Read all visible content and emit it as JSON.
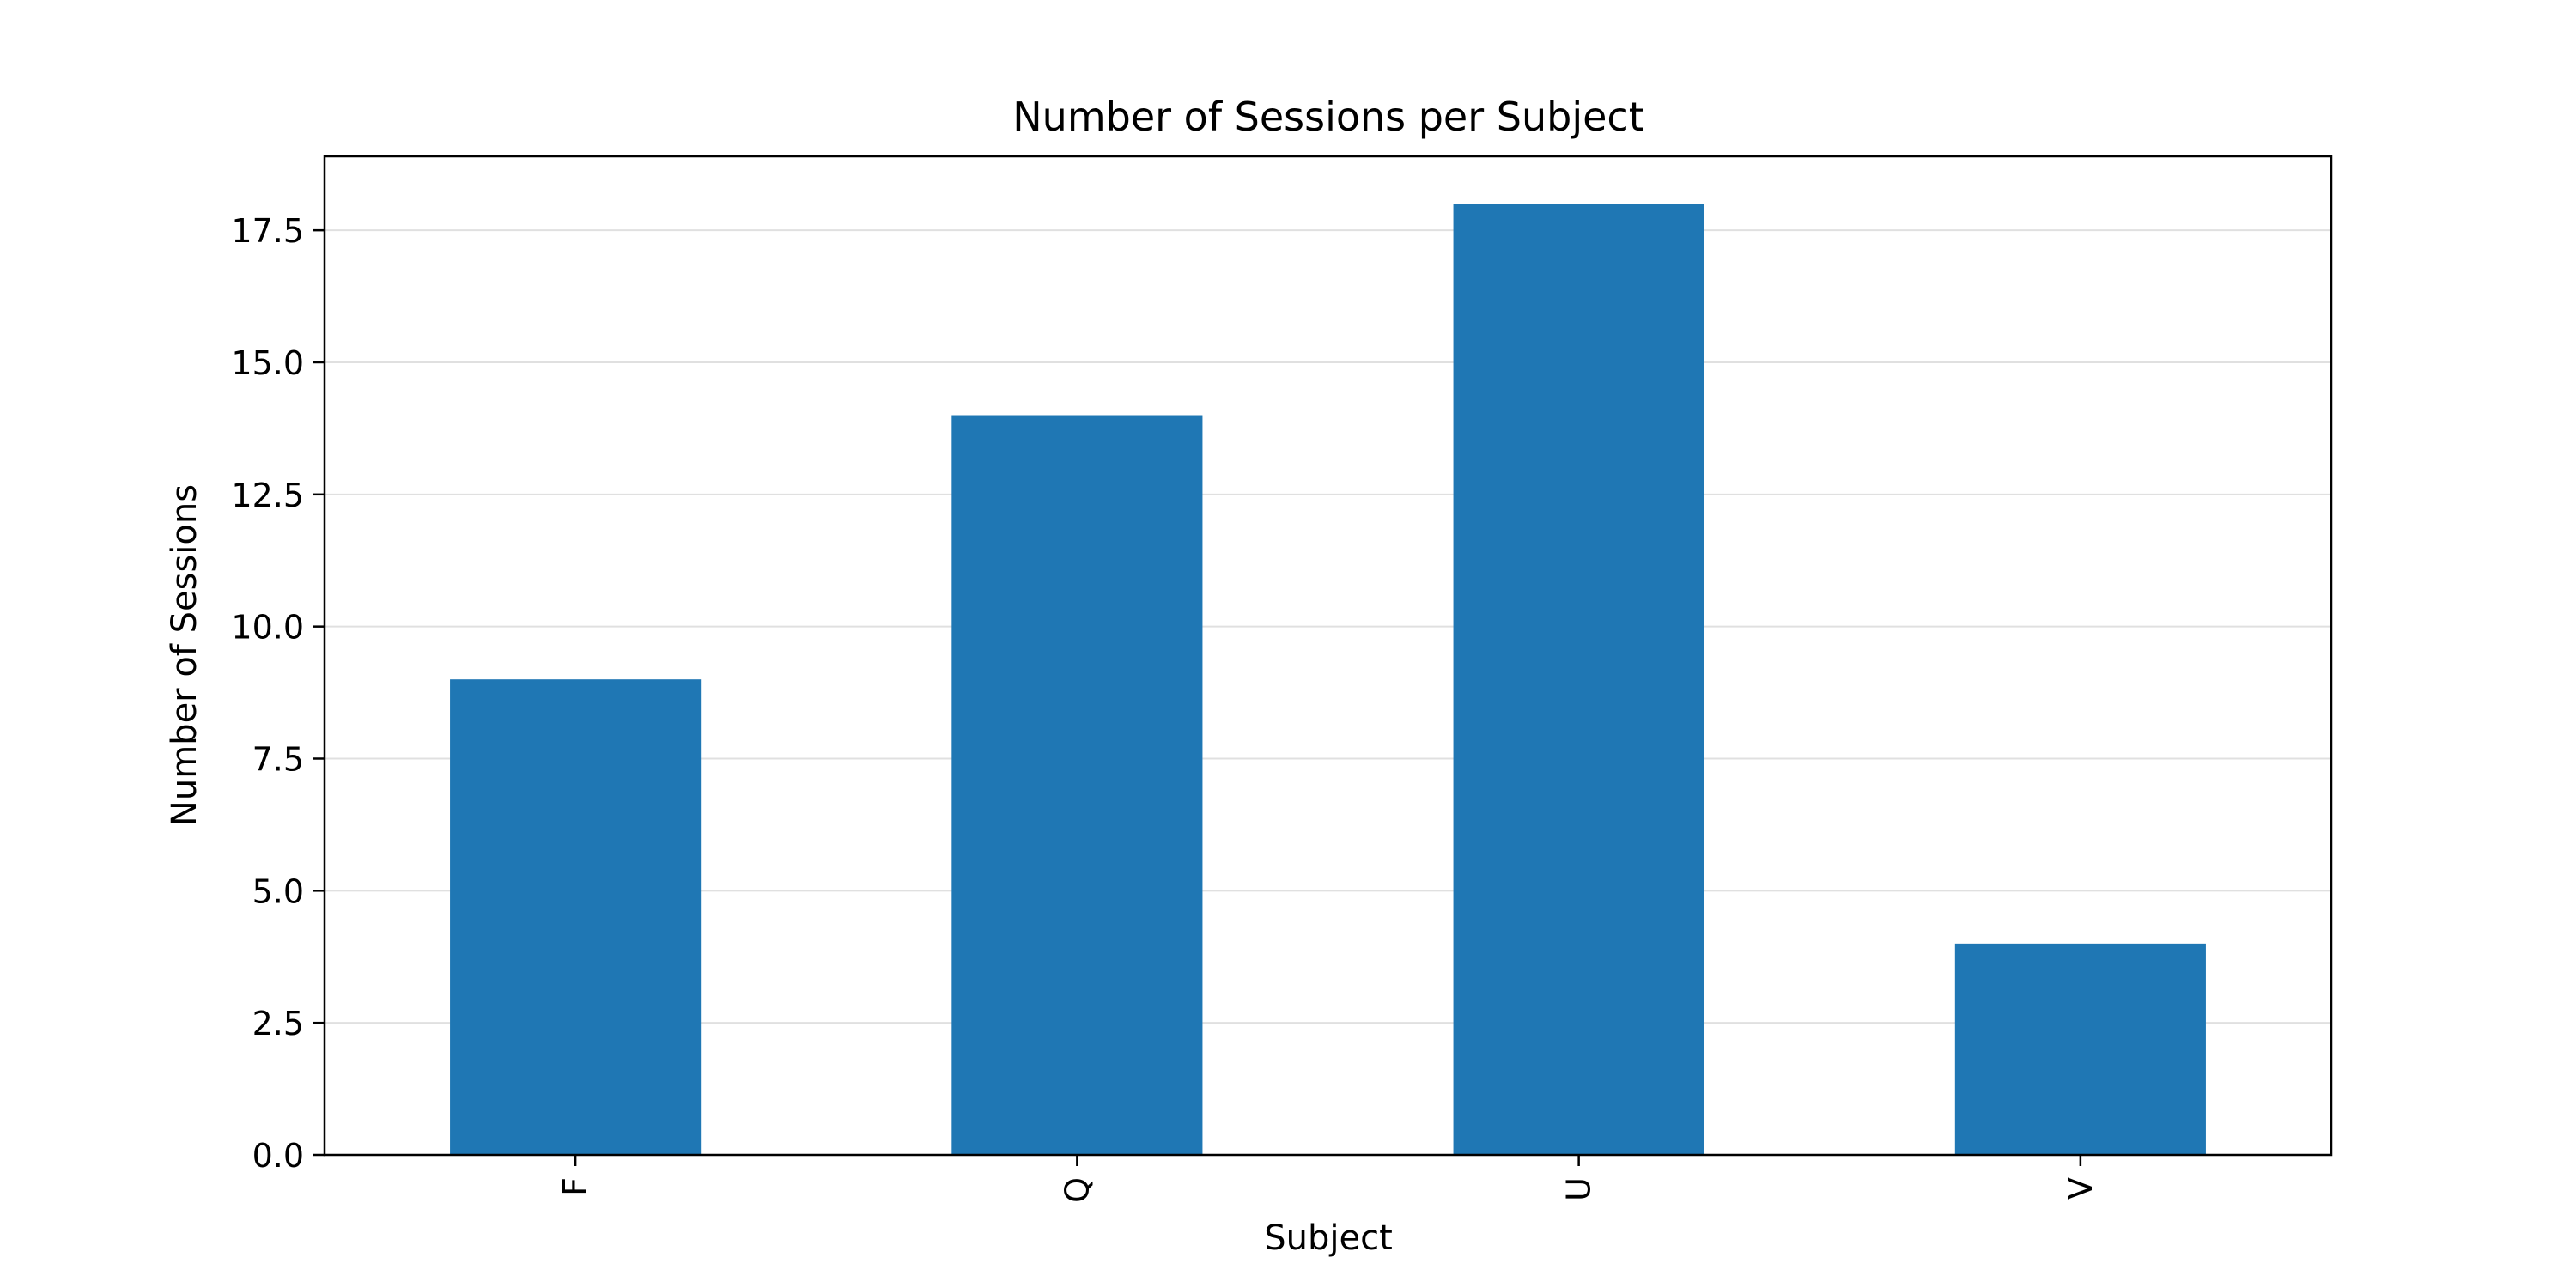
{
  "chart_data": {
    "type": "bar",
    "title": "Number of Sessions per Subject",
    "xlabel": "Subject",
    "ylabel": "Number of Sessions",
    "categories": [
      "F",
      "Q",
      "U",
      "V"
    ],
    "values": [
      9,
      14,
      18,
      4
    ],
    "ylim": [
      0,
      18.9
    ],
    "yticks": [
      0.0,
      2.5,
      5.0,
      7.5,
      10.0,
      12.5,
      15.0,
      17.5
    ],
    "ytick_labels": [
      "0.0",
      "2.5",
      "5.0",
      "7.5",
      "10.0",
      "12.5",
      "15.0",
      "17.5"
    ],
    "grid": "horizontal",
    "legend": "none",
    "bar_color": "#1f77b4",
    "grid_color": "#e0e0e0",
    "x_tick_rotation": "vertical"
  }
}
